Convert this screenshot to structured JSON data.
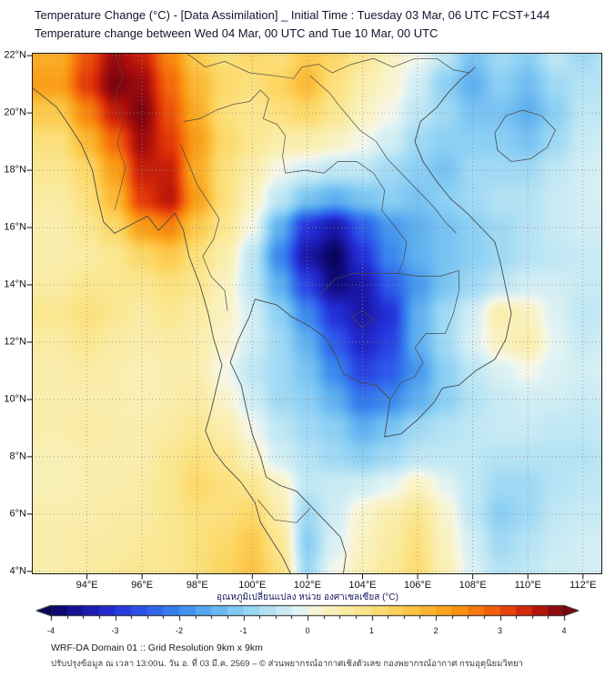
{
  "title": {
    "line1": "Temperature Change (°C) - [Data Assimilation] _ Initial Time : Tuesday 03 Mar, 06 UTC FCST+144",
    "line2": "Temperature change between Wed 04 Mar, 00 UTC and Tue 10 Mar, 00 UTC"
  },
  "map": {
    "x_tick_labels": [
      "94°E",
      "96°E",
      "98°E",
      "100°E",
      "102°E",
      "104°E",
      "106°E",
      "108°E",
      "110°E",
      "112°E"
    ],
    "y_tick_labels": [
      "22°N",
      "20°N",
      "18°N",
      "16°N",
      "14°N",
      "12°N",
      "10°N",
      "8°N",
      "6°N",
      "4°N"
    ],
    "grid_lons": [
      94,
      96,
      98,
      100,
      102,
      104,
      106,
      108,
      110,
      112
    ],
    "grid_lats": [
      22,
      20,
      18,
      16,
      14,
      12,
      10,
      8,
      6,
      4
    ],
    "lon_range": [
      92.0,
      112.7
    ],
    "lat_range": [
      3.9,
      22.1
    ]
  },
  "colorbar": {
    "title": "อุณหภูมิเปลี่ยนแปลง หน่วย องศาเซลเซียส (°C)",
    "tick_labels": [
      "-4",
      "-3",
      "-2",
      "-1",
      "0",
      "1",
      "2",
      "3",
      "4"
    ],
    "range": [
      -4,
      4
    ],
    "stops": [
      {
        "v": -4.0,
        "c": "#08045e"
      },
      {
        "v": -3.5,
        "c": "#1a17a8"
      },
      {
        "v": -3.0,
        "c": "#2430d8"
      },
      {
        "v": -2.5,
        "c": "#2e5bea"
      },
      {
        "v": -2.0,
        "c": "#3a87ee"
      },
      {
        "v": -1.5,
        "c": "#5fb0f0"
      },
      {
        "v": -1.0,
        "c": "#8cd0f4"
      },
      {
        "v": -0.5,
        "c": "#bfe7f4"
      },
      {
        "v": -0.1,
        "c": "#e4f4f3"
      },
      {
        "v": 0.0,
        "c": "#f6f6e8"
      },
      {
        "v": 0.3,
        "c": "#f9f2c0"
      },
      {
        "v": 0.8,
        "c": "#fbe791"
      },
      {
        "v": 1.3,
        "c": "#fcd55f"
      },
      {
        "v": 1.8,
        "c": "#fcb935"
      },
      {
        "v": 2.3,
        "c": "#fa9812"
      },
      {
        "v": 2.8,
        "c": "#f4680a"
      },
      {
        "v": 3.3,
        "c": "#dd2f08"
      },
      {
        "v": 3.7,
        "c": "#ab0f0b"
      },
      {
        "v": 4.0,
        "c": "#7c0410"
      }
    ]
  },
  "footer": {
    "line1": "WRF-DA Domain 01 :: Grid Resolution 9km x 9km",
    "line2": "ปรับปรุงข้อมูล ณ เวลา 13:00น. วัน อ. ที่ 03 มี.ค. 2569 – © ส่วนพยากรณ์อากาศเชิงตัวเลข กองพยากรณ์อากาศ กรมอุตุนิยมวิทยา"
  },
  "chart_data": {
    "type": "heatmap",
    "title": "Temperature Change (°C) - [Data Assimilation] _ Initial Time : Tuesday 03 Mar, 06 UTC FCST+144",
    "subtitle": "Temperature change between Wed 04 Mar, 00 UTC and Tue 10 Mar, 00 UTC",
    "units": "°C",
    "x_unit": "°E",
    "y_unit": "°N",
    "value_range": [
      -4,
      4
    ],
    "legend_position": "bottom-colorbar",
    "x": [
      93,
      94,
      95,
      96,
      97,
      98,
      99,
      100,
      101,
      102,
      103,
      104,
      105,
      106,
      107,
      108,
      109,
      110,
      111,
      112,
      113
    ],
    "y": [
      22,
      21,
      20,
      19,
      18,
      17,
      16,
      15,
      14,
      13,
      12,
      11,
      10,
      9,
      8,
      7,
      6,
      5,
      4
    ],
    "values": [
      [
        2.0,
        3.0,
        3.8,
        3.5,
        2.5,
        1.5,
        1.0,
        1.2,
        1.0,
        1.5,
        1.2,
        0.8,
        0.3,
        0.0,
        -0.5,
        -1.2,
        -0.8,
        -1.0,
        -0.5,
        -0.8,
        -0.5
      ],
      [
        2.2,
        3.2,
        4.0,
        3.8,
        2.8,
        1.8,
        1.2,
        1.0,
        1.3,
        1.8,
        1.0,
        0.5,
        0.2,
        -0.3,
        -1.0,
        -1.5,
        -1.0,
        -1.3,
        -0.8,
        -0.6,
        -0.6
      ],
      [
        1.5,
        2.5,
        3.5,
        4.0,
        3.0,
        2.0,
        1.0,
        0.8,
        1.0,
        1.2,
        0.8,
        0.3,
        0.0,
        -0.5,
        -0.8,
        -1.2,
        -1.2,
        -1.5,
        -1.0,
        -0.5,
        -0.5
      ],
      [
        1.0,
        1.8,
        2.8,
        3.8,
        3.2,
        2.2,
        1.2,
        0.8,
        0.5,
        0.5,
        0.3,
        0.0,
        -0.3,
        -0.8,
        -1.0,
        -1.0,
        -1.0,
        -1.2,
        -0.8,
        -0.4,
        -0.3
      ],
      [
        0.8,
        1.2,
        2.2,
        3.5,
        3.5,
        2.0,
        1.0,
        0.5,
        0.0,
        -0.3,
        -0.5,
        -0.5,
        -0.8,
        -1.0,
        -1.2,
        -0.8,
        -0.8,
        -0.8,
        -0.5,
        -0.3,
        -0.2
      ],
      [
        0.6,
        1.0,
        1.8,
        3.2,
        3.6,
        2.2,
        1.0,
        0.3,
        -0.5,
        -1.2,
        -1.5,
        -1.2,
        -1.0,
        -1.2,
        -1.0,
        -0.8,
        -0.6,
        -0.6,
        -0.4,
        -0.3,
        -0.2
      ],
      [
        0.5,
        0.8,
        1.2,
        2.2,
        2.5,
        1.5,
        0.8,
        0.0,
        -1.5,
        -3.0,
        -3.5,
        -2.5,
        -1.8,
        -1.5,
        -1.2,
        -1.0,
        -0.8,
        -0.6,
        -0.4,
        -0.3,
        -0.3
      ],
      [
        0.5,
        0.6,
        0.8,
        1.2,
        1.5,
        1.0,
        0.5,
        -0.5,
        -2.0,
        -3.5,
        -4.0,
        -3.0,
        -2.0,
        -1.5,
        -1.2,
        -1.0,
        -0.8,
        -0.6,
        -0.5,
        -0.4,
        -0.4
      ],
      [
        0.6,
        0.8,
        0.8,
        0.8,
        1.0,
        0.8,
        0.3,
        -0.5,
        -1.5,
        -2.8,
        -3.8,
        -3.5,
        -2.5,
        -1.8,
        -1.2,
        -0.8,
        -0.5,
        -0.3,
        -0.3,
        -0.4,
        -0.4
      ],
      [
        0.8,
        1.0,
        0.8,
        0.6,
        0.8,
        0.6,
        0.3,
        -0.3,
        -1.0,
        -2.0,
        -3.0,
        -3.5,
        -3.0,
        -1.5,
        -0.8,
        -0.3,
        0.5,
        0.3,
        -0.2,
        -0.5,
        -0.4
      ],
      [
        0.6,
        0.8,
        0.6,
        0.5,
        0.6,
        0.5,
        0.2,
        -0.3,
        -0.8,
        -1.5,
        -2.5,
        -3.2,
        -2.8,
        -1.5,
        -0.8,
        -0.2,
        0.3,
        0.5,
        -0.1,
        -0.4,
        -0.3
      ],
      [
        0.5,
        0.6,
        0.5,
        0.4,
        0.5,
        0.5,
        0.0,
        -0.5,
        -0.8,
        -1.2,
        -2.0,
        -2.8,
        -2.5,
        -1.8,
        -1.0,
        -0.5,
        -0.2,
        0.0,
        -0.2,
        -0.3,
        -0.2
      ],
      [
        0.5,
        0.5,
        0.5,
        0.4,
        0.5,
        0.6,
        0.2,
        -0.3,
        -0.8,
        -1.0,
        -1.5,
        -2.2,
        -2.0,
        -1.5,
        -1.0,
        -0.6,
        -0.4,
        -0.3,
        -0.3,
        -0.4,
        -0.3
      ],
      [
        0.5,
        0.6,
        0.5,
        0.5,
        0.6,
        0.8,
        0.5,
        0.0,
        -0.5,
        -0.8,
        -1.0,
        -1.5,
        -1.2,
        -0.8,
        -0.6,
        -0.5,
        -0.4,
        -0.4,
        -0.5,
        -0.5,
        -0.4
      ],
      [
        0.4,
        0.5,
        0.5,
        0.5,
        0.8,
        1.0,
        0.8,
        0.3,
        -0.3,
        -0.6,
        -0.8,
        -1.0,
        -0.8,
        -0.5,
        -0.5,
        -0.5,
        -0.6,
        -0.6,
        -0.6,
        -0.6,
        -0.5
      ],
      [
        0.4,
        0.5,
        0.5,
        0.6,
        0.8,
        1.2,
        1.0,
        0.8,
        0.3,
        -0.5,
        -0.4,
        -0.3,
        -0.1,
        0.3,
        -0.1,
        -0.5,
        -0.8,
        -0.8,
        -0.6,
        -0.5,
        -0.5
      ],
      [
        0.5,
        0.5,
        0.6,
        0.6,
        0.8,
        1.0,
        1.0,
        1.2,
        0.5,
        -0.8,
        -0.3,
        0.2,
        0.5,
        0.8,
        0.2,
        -0.5,
        -1.0,
        -0.8,
        -0.5,
        -0.4,
        -0.4
      ],
      [
        0.5,
        0.6,
        0.6,
        0.7,
        0.8,
        1.0,
        1.2,
        1.5,
        0.8,
        -1.0,
        -0.2,
        0.3,
        0.6,
        1.0,
        0.3,
        -0.3,
        -0.8,
        -0.6,
        -0.4,
        -0.3,
        -0.3
      ],
      [
        0.5,
        0.6,
        0.7,
        0.8,
        0.8,
        1.0,
        1.3,
        1.6,
        1.0,
        -0.8,
        0.0,
        0.4,
        0.7,
        1.1,
        0.4,
        -0.2,
        -0.6,
        -0.5,
        -0.3,
        -0.3,
        -0.3
      ]
    ]
  }
}
